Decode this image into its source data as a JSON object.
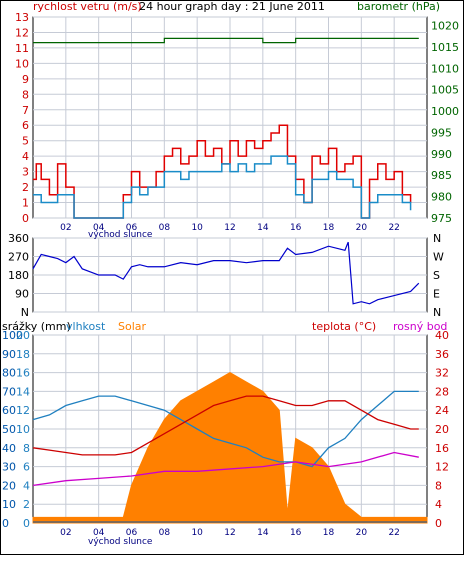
{
  "title": "24 hour graph day : 21 June 2011",
  "colors": {
    "wind": "#e00000",
    "gust": "#ff0000",
    "wind_avg": "#1a8cc8",
    "pressure": "#006400",
    "direction": "#0000cc",
    "humidity": "#2080c0",
    "solar": "#ff8000",
    "temperature": "#cc0000",
    "dewpoint": "#cc00cc",
    "rain": "#0055aa",
    "grid": "#c6cbd6"
  },
  "time_labels": [
    "02",
    "04",
    "06",
    "08",
    "10",
    "12",
    "14",
    "16",
    "18",
    "20",
    "22"
  ],
  "sunrise_label": "východ slunce",
  "panel1": {
    "left_label": "rychlost vetru (m/s)",
    "right_label": "barometr (hPa)",
    "left_ticks": [
      "0",
      "1",
      "2",
      "3",
      "4",
      "5",
      "6",
      "7",
      "8",
      "9",
      "10",
      "11",
      "12",
      "13"
    ],
    "right_ticks": [
      "975",
      "980",
      "985",
      "990",
      "995",
      "1000",
      "1005",
      "1010",
      "1015",
      "1020"
    ]
  },
  "panel2": {
    "left_ticks": [
      "N",
      "90",
      "180",
      "270",
      "360"
    ],
    "right_ticks": [
      "N",
      "E",
      "S",
      "W",
      "N"
    ]
  },
  "panel3": {
    "rain_label": "srážky (mm)",
    "humidity_label": "vlhkost",
    "solar_label": "Solar",
    "temp_label": "teplota (°C)",
    "dew_label": "rosný bod",
    "rain_ticks": [
      "0",
      "10",
      "20",
      "30",
      "40",
      "50",
      "60",
      "70",
      "80",
      "90",
      "100"
    ],
    "hum_ticks": [
      "0",
      "2",
      "4",
      "6",
      "8",
      "10",
      "12",
      "14",
      "16",
      "18",
      "20"
    ],
    "temp_ticks": [
      "0",
      "4",
      "8",
      "12",
      "16",
      "20",
      "24",
      "28",
      "32",
      "36",
      "40"
    ]
  },
  "chart_data": [
    {
      "type": "line",
      "title": "24 hour graph day : 21 June 2011",
      "xlabel": "",
      "ylabel": "rychlost vetru (m/s)",
      "y2label": "barometr (hPa)",
      "xlim": [
        0,
        24
      ],
      "ylim": [
        0,
        13
      ],
      "y2lim": [
        975,
        1022
      ],
      "series": [
        {
          "name": "rychlost vetru (m/s)",
          "x": [
            0,
            0.2,
            0.5,
            1,
            1.5,
            2,
            2.5,
            5,
            5.5,
            6,
            6.5,
            7,
            7.5,
            8,
            8.5,
            9,
            9.5,
            10,
            10.5,
            11,
            11.5,
            12,
            12.5,
            13,
            13.5,
            14,
            14.5,
            15,
            15.5,
            16,
            16.5,
            17,
            17.5,
            18,
            18.5,
            19,
            19.5,
            20,
            20.5,
            21,
            21.5,
            22,
            22.5,
            23
          ],
          "values": [
            2.5,
            3.5,
            2.5,
            1.5,
            3.5,
            2,
            0,
            0,
            1.5,
            3,
            2,
            2,
            3,
            4,
            4.5,
            3.5,
            4,
            5,
            4,
            4.5,
            3.5,
            5,
            4,
            5,
            4.5,
            5,
            5.5,
            6,
            4,
            2.5,
            1,
            4,
            3.5,
            4.5,
            3,
            3.5,
            4,
            0,
            2.5,
            3.5,
            2.5,
            3,
            1.5,
            1
          ]
        },
        {
          "name": "wind average",
          "x": [
            0,
            0.5,
            1,
            1.5,
            2,
            2.5,
            5,
            5.5,
            6,
            6.5,
            7,
            7.5,
            8,
            8.5,
            9,
            9.5,
            10,
            10.5,
            11,
            11.5,
            12,
            12.5,
            13,
            13.5,
            14,
            14.5,
            15,
            15.5,
            16,
            16.5,
            17,
            17.5,
            18,
            18.5,
            19,
            19.5,
            20,
            20.5,
            21,
            21.5,
            22,
            22.5,
            23
          ],
          "values": [
            1.5,
            1,
            1,
            1.5,
            1.5,
            0,
            0,
            1,
            2,
            1.5,
            2,
            2,
            3,
            3,
            2.5,
            3,
            3,
            3,
            3,
            3.5,
            3,
            3.5,
            3,
            3.5,
            3.5,
            4,
            4,
            3.5,
            1.5,
            1,
            2.5,
            2.5,
            3,
            2.5,
            2.5,
            2,
            0,
            1,
            1.5,
            1.5,
            1.5,
            1,
            0.5
          ]
        },
        {
          "name": "barometr (hPa)",
          "axis": "right",
          "x": [
            0,
            2,
            4,
            6,
            8,
            10,
            12,
            14,
            16,
            18,
            20,
            22,
            23.5
          ],
          "values": [
            1016,
            1016,
            1016,
            1016,
            1017,
            1017,
            1017,
            1016,
            1017,
            1017,
            1017,
            1017,
            1017
          ]
        }
      ]
    },
    {
      "type": "line",
      "xlabel": "",
      "ylabel": "",
      "xlim": [
        0,
        24
      ],
      "ylim": [
        0,
        360
      ],
      "series": [
        {
          "name": "wind direction",
          "x": [
            0,
            0.5,
            1,
            1.5,
            2,
            2.5,
            3,
            4,
            5,
            5.5,
            6,
            6.5,
            7,
            8,
            9,
            10,
            11,
            12,
            13,
            14,
            15,
            15.5,
            16,
            17,
            18,
            19,
            19.2,
            19.5,
            20,
            20.5,
            21,
            22,
            23,
            23.5
          ],
          "values": [
            210,
            280,
            270,
            260,
            240,
            270,
            210,
            180,
            180,
            160,
            220,
            230,
            220,
            220,
            240,
            230,
            250,
            250,
            240,
            250,
            250,
            310,
            280,
            290,
            320,
            300,
            340,
            40,
            50,
            40,
            60,
            80,
            100,
            140
          ]
        }
      ]
    },
    {
      "type": "line",
      "xlabel": "",
      "xlim": [
        0,
        24
      ],
      "ylim": [
        0,
        40
      ],
      "series": [
        {
          "name": "Solar",
          "axis": "rain",
          "x": [
            0,
            5,
            5.5,
            6,
            7,
            8,
            9,
            10,
            11,
            12,
            13,
            14,
            15,
            15.5,
            16,
            17,
            18,
            19,
            20,
            24
          ],
          "values": [
            3,
            3,
            3,
            20,
            40,
            55,
            65,
            70,
            75,
            80,
            75,
            70,
            60,
            5,
            45,
            40,
            30,
            10,
            3,
            3
          ]
        },
        {
          "name": "vlhkost",
          "axis": "humidity",
          "x": [
            0,
            1,
            2,
            3,
            4,
            5,
            6,
            7,
            8,
            9,
            10,
            11,
            12,
            13,
            14,
            15,
            16,
            17,
            18,
            19,
            20,
            21,
            22,
            23,
            23.5
          ],
          "values": [
            11,
            11.5,
            12.5,
            13,
            13.5,
            13.5,
            13,
            12.5,
            12,
            11,
            10,
            9,
            8.5,
            8,
            7,
            6.5,
            6.5,
            6,
            8,
            9,
            11,
            12.5,
            14,
            14,
            14
          ]
        },
        {
          "name": "teplota (°C)",
          "axis": "temperature",
          "x": [
            0,
            1,
            2,
            3,
            4,
            5,
            6,
            7,
            8,
            9,
            10,
            11,
            12,
            13,
            14,
            15,
            16,
            17,
            18,
            19,
            20,
            21,
            22,
            23,
            23.5
          ],
          "values": [
            16,
            15.5,
            15,
            14.5,
            14.5,
            14.5,
            15,
            17,
            19,
            21,
            23,
            25,
            26,
            27,
            27,
            26,
            25,
            25,
            26,
            26,
            24,
            22,
            21,
            20,
            20
          ]
        },
        {
          "name": "rosný bod",
          "axis": "temperature",
          "x": [
            0,
            2,
            4,
            6,
            8,
            10,
            12,
            14,
            16,
            18,
            20,
            22,
            23.5
          ],
          "values": [
            8,
            9,
            9.5,
            10,
            11,
            11,
            11.5,
            12,
            13,
            12,
            13,
            15,
            14
          ]
        },
        {
          "name": "srážky (mm)",
          "axis": "rain",
          "x": [
            0,
            24
          ],
          "values": [
            0,
            0
          ]
        }
      ]
    }
  ]
}
